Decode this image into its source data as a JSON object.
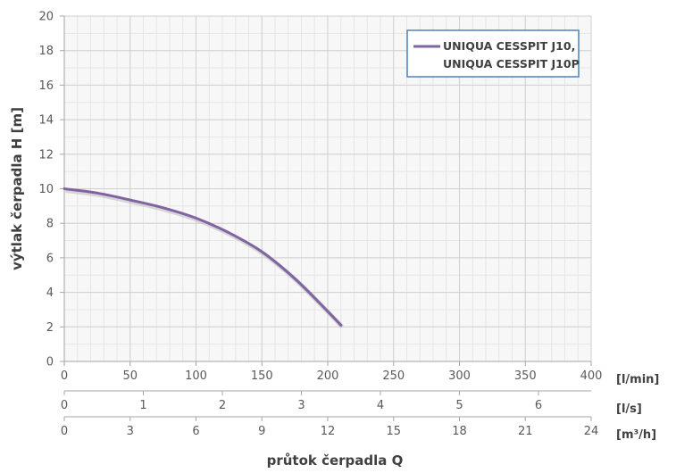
{
  "chart_data": {
    "type": "line",
    "ylabel": "výtlak čerpadla H [m]",
    "xlabel": "průtok čerpadla Q",
    "ylim": [
      0,
      20
    ],
    "y_ticks": [
      "0",
      "2",
      "4",
      "6",
      "8",
      "10",
      "12",
      "14",
      "16",
      "18",
      "20"
    ],
    "grid": true,
    "legend_position": "top-right",
    "x_axes": [
      {
        "unit": "[l/min]",
        "range": [
          0,
          400
        ],
        "ticks": [
          "0",
          "50",
          "100",
          "150",
          "200",
          "250",
          "300",
          "350",
          "400"
        ]
      },
      {
        "unit": "[l/s]",
        "range": [
          0,
          6.667
        ],
        "ticks": [
          "0",
          "1",
          "2",
          "3",
          "4",
          "5",
          "6"
        ]
      },
      {
        "unit": "[m³/h]",
        "range": [
          0,
          24
        ],
        "ticks": [
          "0",
          "3",
          "6",
          "9",
          "12",
          "15",
          "18",
          "21",
          "24"
        ]
      }
    ],
    "series": [
      {
        "name": "UNIQUA CESSPIT J10, UNIQUA CESSPIT J10P",
        "legend_lines": [
          "UNIQUA CESSPIT J10,",
          "UNIQUA CESSPIT J10P"
        ],
        "color": "#8064a2",
        "x": [
          0,
          25,
          50,
          75,
          100,
          125,
          150,
          175,
          200,
          210
        ],
        "y": [
          10.0,
          9.75,
          9.35,
          8.9,
          8.3,
          7.45,
          6.35,
          4.8,
          2.9,
          2.1
        ]
      }
    ]
  }
}
